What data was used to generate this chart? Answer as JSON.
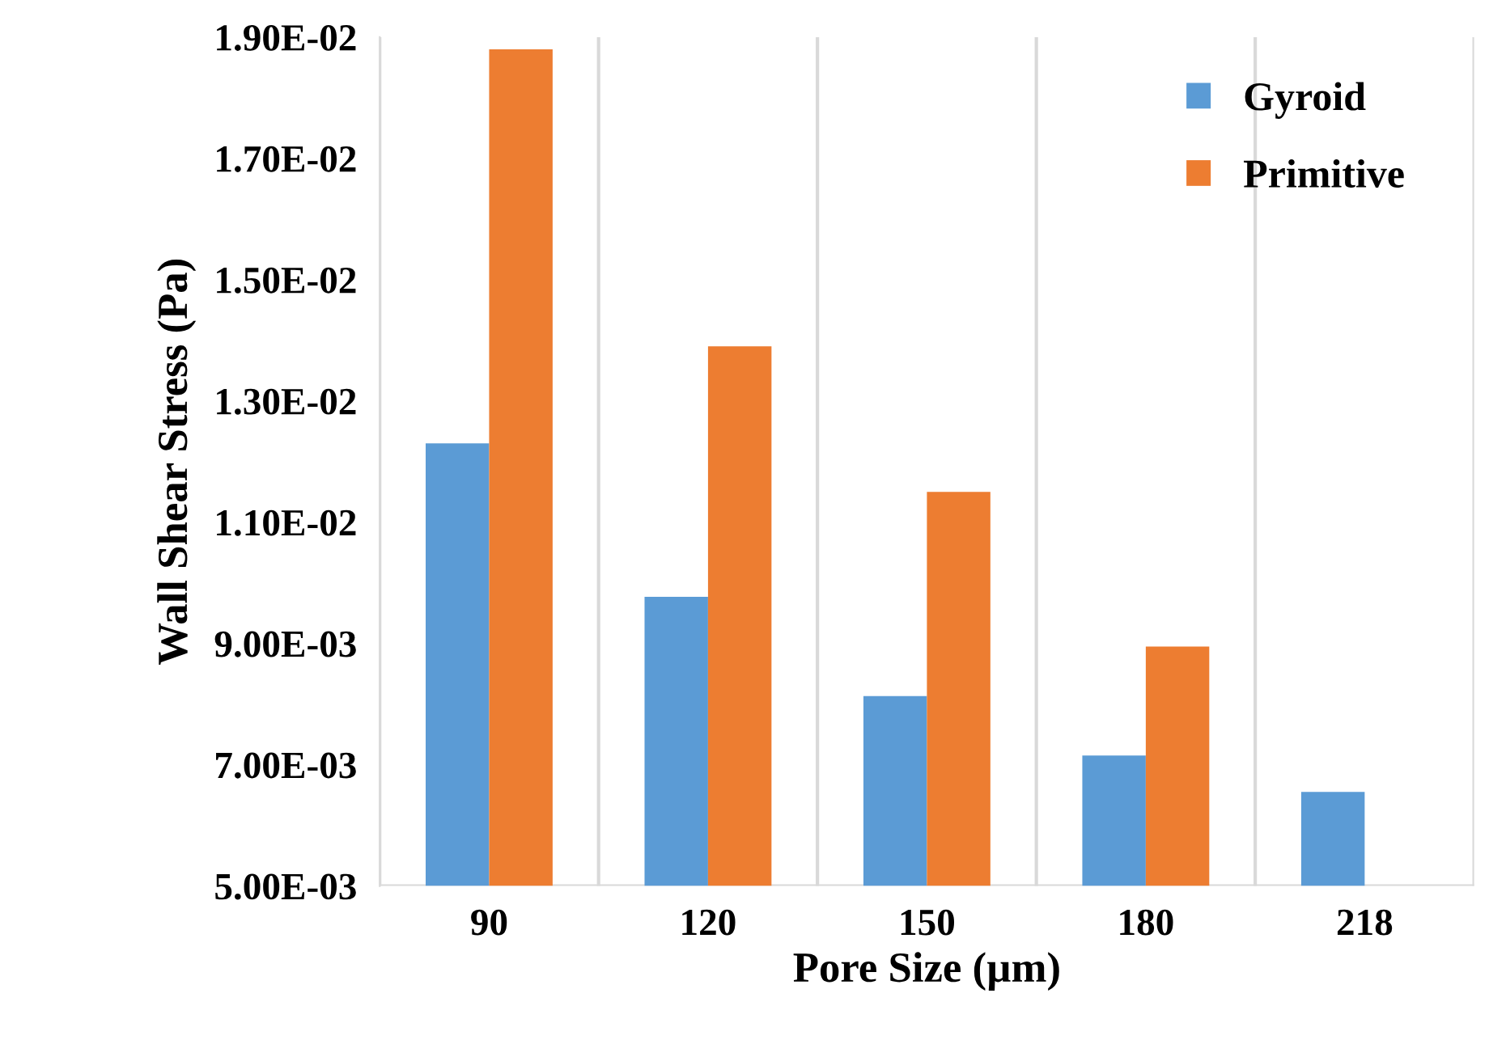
{
  "chart_data": {
    "type": "bar",
    "xlabel": "Pore Size (µm)",
    "ylabel": "Wall Shear Stress (Pa)",
    "categories": [
      "90",
      "120",
      "150",
      "180",
      "218"
    ],
    "series": [
      {
        "name": "Gyroid",
        "color": "#5b9bd5",
        "values": [
          0.0123,
          0.00977,
          0.00813,
          0.00715,
          0.00655
        ]
      },
      {
        "name": "Primitive",
        "color": "#ed7d31",
        "values": [
          0.0188,
          0.0139,
          0.0115,
          0.00895,
          null
        ]
      }
    ],
    "ylim": [
      0.005,
      0.019
    ],
    "yticks": [
      {
        "value": 0.005,
        "label": "5.00E-03"
      },
      {
        "value": 0.007,
        "label": "7.00E-03"
      },
      {
        "value": 0.009,
        "label": "9.00E-03"
      },
      {
        "value": 0.011,
        "label": "1.10E-02"
      },
      {
        "value": 0.013,
        "label": "1.30E-02"
      },
      {
        "value": 0.015,
        "label": "1.50E-02"
      },
      {
        "value": 0.017,
        "label": "1.70E-02"
      },
      {
        "value": 0.019,
        "label": "1.90E-02"
      }
    ],
    "grid": "x",
    "legend": "top right"
  }
}
